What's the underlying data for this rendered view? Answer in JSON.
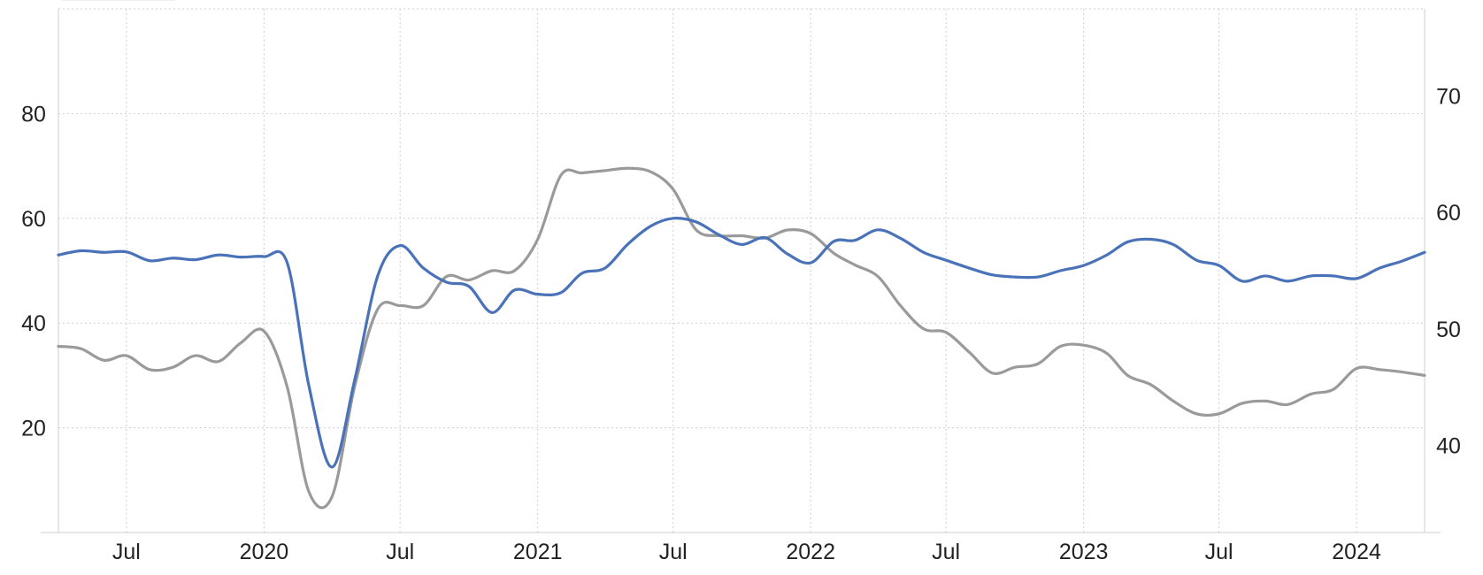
{
  "chart_data": {
    "type": "line",
    "x_type": "date",
    "title": "",
    "xlabel": "",
    "ylabel": "",
    "xlim": [
      "2019-04-01",
      "2024-04-01"
    ],
    "x_ticks": [
      {
        "date": "2019-07-01",
        "label": "Jul"
      },
      {
        "date": "2020-01-01",
        "label": "2020"
      },
      {
        "date": "2020-07-01",
        "label": "Jul"
      },
      {
        "date": "2021-01-01",
        "label": "2021"
      },
      {
        "date": "2021-07-01",
        "label": "Jul"
      },
      {
        "date": "2022-01-01",
        "label": "2022"
      },
      {
        "date": "2022-07-01",
        "label": "Jul"
      },
      {
        "date": "2023-01-01",
        "label": "2023"
      },
      {
        "date": "2023-07-01",
        "label": "Jul"
      },
      {
        "date": "2024-01-01",
        "label": "2024"
      }
    ],
    "y_left": {
      "ylim": [
        0,
        100
      ],
      "ticks": [
        20,
        40,
        60,
        80
      ]
    },
    "y_right": {
      "ylim": [
        32.5,
        77.5
      ],
      "ticks": [
        40,
        50,
        60,
        70
      ]
    },
    "grid": true,
    "series": [
      {
        "axis": "left",
        "color": "#4a72b8",
        "x": [
          "2019-04-01",
          "2019-05-01",
          "2019-06-01",
          "2019-07-01",
          "2019-08-01",
          "2019-09-01",
          "2019-10-01",
          "2019-11-01",
          "2019-12-01",
          "2020-01-01",
          "2020-02-01",
          "2020-03-01",
          "2020-04-01",
          "2020-05-01",
          "2020-06-01",
          "2020-07-01",
          "2020-08-01",
          "2020-09-01",
          "2020-10-01",
          "2020-11-01",
          "2020-12-01",
          "2021-01-01",
          "2021-02-01",
          "2021-03-01",
          "2021-04-01",
          "2021-05-01",
          "2021-06-01",
          "2021-07-01",
          "2021-08-01",
          "2021-09-01",
          "2021-10-01",
          "2021-11-01",
          "2021-12-01",
          "2022-01-01",
          "2022-02-01",
          "2022-03-01",
          "2022-04-01",
          "2022-05-01",
          "2022-06-01",
          "2022-07-01",
          "2022-08-01",
          "2022-09-01",
          "2022-10-01",
          "2022-11-01",
          "2022-12-01",
          "2023-01-01",
          "2023-02-01",
          "2023-03-01",
          "2023-04-01",
          "2023-05-01",
          "2023-06-01",
          "2023-07-01",
          "2023-08-01",
          "2023-09-01",
          "2023-10-01",
          "2023-11-01",
          "2023-12-01",
          "2024-01-01",
          "2024-02-01",
          "2024-03-01",
          "2024-04-01"
        ],
        "values": [
          53.0,
          53.8,
          53.5,
          53.6,
          51.9,
          52.4,
          52.1,
          53.0,
          52.6,
          52.7,
          51.5,
          28.0,
          12.5,
          29.0,
          49.0,
          54.8,
          50.5,
          47.8,
          47.0,
          42.0,
          46.3,
          45.5,
          45.8,
          49.5,
          50.5,
          55.0,
          58.5,
          60.0,
          59.3,
          56.8,
          55.0,
          56.3,
          53.2,
          51.5,
          55.6,
          55.8,
          57.8,
          56.2,
          53.5,
          52.0,
          50.5,
          49.2,
          48.8,
          48.8,
          50.0,
          51.0,
          53.0,
          55.5,
          56.0,
          55.0,
          52.0,
          51.0,
          48.0,
          49.0,
          48.0,
          49.0,
          49.0,
          48.5,
          50.5,
          51.8,
          53.5
        ]
      },
      {
        "axis": "right",
        "color": "#9a9a9a",
        "x": [
          "2019-04-01",
          "2019-05-01",
          "2019-06-01",
          "2019-07-01",
          "2019-08-01",
          "2019-09-01",
          "2019-10-01",
          "2019-11-01",
          "2019-12-01",
          "2020-01-01",
          "2020-02-01",
          "2020-03-01",
          "2020-04-01",
          "2020-05-01",
          "2020-06-01",
          "2020-07-01",
          "2020-08-01",
          "2020-09-01",
          "2020-10-01",
          "2020-11-01",
          "2020-12-01",
          "2021-01-01",
          "2021-02-01",
          "2021-03-01",
          "2021-04-01",
          "2021-05-01",
          "2021-06-01",
          "2021-07-01",
          "2021-08-01",
          "2021-09-01",
          "2021-10-01",
          "2021-11-01",
          "2021-12-01",
          "2022-01-01",
          "2022-02-01",
          "2022-03-01",
          "2022-04-01",
          "2022-05-01",
          "2022-06-01",
          "2022-07-01",
          "2022-08-01",
          "2022-09-01",
          "2022-10-01",
          "2022-11-01",
          "2022-12-01",
          "2023-01-01",
          "2023-02-01",
          "2023-03-01",
          "2023-04-01",
          "2023-05-01",
          "2023-06-01",
          "2023-07-01",
          "2023-08-01",
          "2023-09-01",
          "2023-10-01",
          "2023-11-01",
          "2023-12-01",
          "2024-01-01",
          "2024-02-01",
          "2024-03-01",
          "2024-04-01"
        ],
        "values": [
          48.5,
          48.3,
          47.3,
          47.7,
          46.5,
          46.7,
          47.7,
          47.2,
          48.8,
          49.8,
          45.0,
          36.0,
          35.6,
          45.0,
          51.7,
          52.0,
          52.0,
          54.5,
          54.2,
          55.0,
          55.0,
          57.7,
          63.2,
          63.4,
          63.6,
          63.8,
          63.5,
          62.0,
          58.5,
          58.0,
          58.0,
          57.8,
          58.5,
          58.2,
          56.5,
          55.5,
          54.5,
          52.0,
          50.0,
          49.7,
          48.0,
          46.2,
          46.7,
          47.0,
          48.5,
          48.6,
          47.9,
          46.0,
          45.2,
          43.8,
          42.7,
          42.7,
          43.6,
          43.8,
          43.5,
          44.4,
          44.8,
          46.6,
          46.5,
          46.3,
          46.0
        ]
      }
    ]
  }
}
